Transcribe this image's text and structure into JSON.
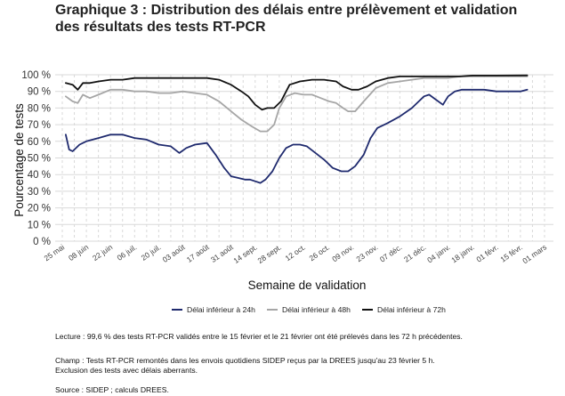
{
  "title_line1": "Graphique 3 : Distribution des délais entre prélèvement et validation",
  "title_line2": "des résultats des tests RT-PCR",
  "notes": {
    "lecture": "Lecture : 99,6 % des tests RT-PCR validés entre le 15 février et le 21 février ont été prélevés dans les 72 h précédentes.",
    "champ_line1": "Champ : Tests RT-PCR remontés dans les envois quotidiens SIDEP reçus par la DREES jusqu'au 23 février 5 h.",
    "champ_line2": "Exclusion des tests avec délais aberrants.",
    "source": "Source : SIDEP ; calculs DREES."
  },
  "colors": {
    "series_24h": "#1f2a6e",
    "series_48h": "#a6a6a6",
    "series_72h": "#111111",
    "grid": "#d9d9d9"
  },
  "chart_data": {
    "type": "line",
    "xlabel": "Semaine de validation",
    "ylabel": "Pourcentage de tests",
    "ylim": [
      0,
      100
    ],
    "y_ticks": [
      "0 %",
      "10 %",
      "20 %",
      "30 %",
      "40 %",
      "50 %",
      "60 %",
      "70 %",
      "80 %",
      "90 %",
      "100 %"
    ],
    "x_ticks": [
      "25 mai",
      "08 juin",
      "22 juin",
      "06 juil.",
      "20 juil.",
      "03 août",
      "17 août",
      "31 août",
      "14 sept.",
      "28 sept.",
      "12 oct.",
      "26 oct.",
      "09 nov.",
      "23 nov.",
      "07 déc.",
      "21 déc.",
      "04 janv.",
      "18 janv.",
      "01 févr.",
      "15 févr.",
      "01 mars"
    ],
    "grid": true,
    "legend_position": "bottom",
    "series": [
      {
        "name": "Délai inférieur à 24h",
        "x": [
          "2020-05-27",
          "2020-05-29",
          "2020-05-31",
          "2020-06-04",
          "2020-06-08",
          "2020-06-15",
          "2020-06-22",
          "2020-06-29",
          "2020-07-06",
          "2020-07-13",
          "2020-07-20",
          "2020-07-27",
          "2020-08-01",
          "2020-08-05",
          "2020-08-10",
          "2020-08-17",
          "2020-08-22",
          "2020-08-27",
          "2020-08-31",
          "2020-09-04",
          "2020-09-08",
          "2020-09-11",
          "2020-09-14",
          "2020-09-17",
          "2020-09-20",
          "2020-09-24",
          "2020-09-28",
          "2020-10-02",
          "2020-10-06",
          "2020-10-10",
          "2020-10-14",
          "2020-10-19",
          "2020-10-24",
          "2020-10-29",
          "2020-11-03",
          "2020-11-07",
          "2020-11-11",
          "2020-11-16",
          "2020-11-20",
          "2020-11-24",
          "2020-11-30",
          "2020-12-07",
          "2020-12-14",
          "2020-12-18",
          "2020-12-21",
          "2020-12-24",
          "2020-12-28",
          "2021-01-01",
          "2021-01-04",
          "2021-01-08",
          "2021-01-12",
          "2021-01-18",
          "2021-01-25",
          "2021-02-01",
          "2021-02-08",
          "2021-02-15",
          "2021-02-19"
        ],
        "values": [
          64,
          55,
          54,
          58,
          60,
          62,
          64,
          64,
          62,
          61,
          58,
          57,
          53,
          56,
          58,
          59,
          52,
          44,
          39,
          38,
          37,
          37,
          36,
          35,
          37,
          42,
          50,
          56,
          58,
          58,
          57,
          53,
          49,
          44,
          42,
          42,
          45,
          52,
          62,
          68,
          71,
          75,
          80,
          84,
          87,
          88,
          85,
          82,
          87,
          90,
          91,
          91,
          91,
          90,
          90,
          90,
          91
        ]
      },
      {
        "name": "Délai inférieur à 48h",
        "x": [
          "2020-05-27",
          "2020-05-31",
          "2020-06-03",
          "2020-06-06",
          "2020-06-10",
          "2020-06-15",
          "2020-06-22",
          "2020-06-29",
          "2020-07-06",
          "2020-07-13",
          "2020-07-20",
          "2020-07-27",
          "2020-08-03",
          "2020-08-10",
          "2020-08-17",
          "2020-08-24",
          "2020-08-31",
          "2020-09-06",
          "2020-09-12",
          "2020-09-17",
          "2020-09-21",
          "2020-09-25",
          "2020-09-28",
          "2020-10-02",
          "2020-10-07",
          "2020-10-12",
          "2020-10-17",
          "2020-10-22",
          "2020-10-27",
          "2020-10-31",
          "2020-11-04",
          "2020-11-07",
          "2020-11-11",
          "2020-11-16",
          "2020-11-23",
          "2020-11-30",
          "2020-12-07",
          "2020-12-14",
          "2020-12-21",
          "2020-12-28",
          "2021-01-04",
          "2021-01-11",
          "2021-01-18",
          "2021-02-01",
          "2021-02-19"
        ],
        "values": [
          87,
          84,
          83,
          88,
          86,
          88,
          91,
          91,
          90,
          90,
          89,
          89,
          90,
          89,
          88,
          84,
          78,
          73,
          69,
          66,
          66,
          70,
          80,
          87,
          89,
          88,
          88,
          86,
          84,
          83,
          80,
          78,
          78,
          84,
          92,
          95,
          96,
          97,
          98,
          98,
          98,
          99,
          99,
          99,
          99
        ]
      },
      {
        "name": "Délai inférieur à 72h",
        "x": [
          "2020-05-27",
          "2020-05-31",
          "2020-06-03",
          "2020-06-06",
          "2020-06-10",
          "2020-06-15",
          "2020-06-22",
          "2020-06-29",
          "2020-07-06",
          "2020-07-13",
          "2020-07-20",
          "2020-07-27",
          "2020-08-03",
          "2020-08-10",
          "2020-08-17",
          "2020-08-24",
          "2020-08-31",
          "2020-09-06",
          "2020-09-10",
          "2020-09-14",
          "2020-09-18",
          "2020-09-21",
          "2020-09-25",
          "2020-09-29",
          "2020-10-04",
          "2020-10-10",
          "2020-10-17",
          "2020-10-24",
          "2020-10-31",
          "2020-11-04",
          "2020-11-09",
          "2020-11-13",
          "2020-11-18",
          "2020-11-23",
          "2020-11-30",
          "2020-12-07",
          "2020-12-14",
          "2020-12-21",
          "2020-12-28",
          "2021-01-04",
          "2021-01-11",
          "2021-01-18",
          "2021-02-01",
          "2021-02-19"
        ],
        "values": [
          95,
          94,
          91,
          95,
          95,
          96,
          97,
          97,
          98,
          98,
          98,
          98,
          98,
          98,
          98,
          97,
          94,
          90,
          87,
          82,
          79,
          80,
          80,
          84,
          94,
          96,
          97,
          97,
          96,
          93,
          91,
          91,
          93,
          96,
          98,
          99,
          99,
          99,
          99,
          99,
          99,
          99.5,
          99.5,
          99.6
        ]
      }
    ]
  }
}
